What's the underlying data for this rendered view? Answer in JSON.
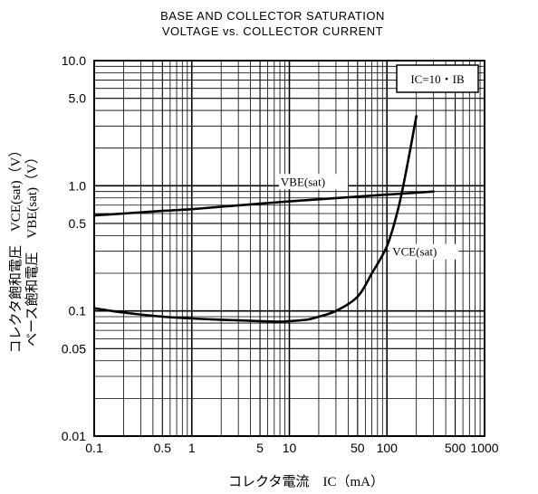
{
  "chart_data": {
    "type": "line",
    "title_lines": [
      "BASE AND COLLECTOR SATURATION",
      "VOLTAGE vs. COLLECTOR CURRENT"
    ],
    "xlabel": "コレクタ電流　I<sub>C</sub>（mA）",
    "xlabel_text": "コレクタ電流　IC（mA）",
    "ylabel_lines": [
      "コレクタ飽和電圧　V<sub>CE(sat)</sub>（V）",
      "ベース飽和電圧　V<sub>BE(sat)</sub>（V）"
    ],
    "ylabel_text_lines": [
      "コレクタ飽和電圧　VCE(sat)（V）",
      "ベース飽和電圧　VBE(sat)（V）"
    ],
    "x_scale": "log",
    "y_scale": "log",
    "xlim": [
      0.1,
      1000
    ],
    "ylim": [
      0.01,
      10
    ],
    "grid": true,
    "x_tick_labels": [
      {
        "value": 0.1,
        "label": "0.1"
      },
      {
        "value": 0.5,
        "label": "0.5"
      },
      {
        "value": 1,
        "label": "1"
      },
      {
        "value": 5,
        "label": "5"
      },
      {
        "value": 10,
        "label": "10"
      },
      {
        "value": 50,
        "label": "50"
      },
      {
        "value": 100,
        "label": "100"
      },
      {
        "value": 500,
        "label": "500"
      },
      {
        "value": 1000,
        "label": "1000"
      }
    ],
    "y_tick_labels": [
      {
        "value": 10,
        "label": "10.0"
      },
      {
        "value": 5,
        "label": "5.0"
      },
      {
        "value": 1,
        "label": "1.0"
      },
      {
        "value": 0.5,
        "label": "0.5"
      },
      {
        "value": 0.1,
        "label": "0.1"
      },
      {
        "value": 0.05,
        "label": "0.05"
      },
      {
        "value": 0.01,
        "label": "0.01"
      }
    ],
    "annotation": "I<sub>C</sub>=10・I<sub>B</sub>",
    "annotation_text": "IC=10・IB",
    "series": [
      {
        "name": "V<sub>BE(sat)</sub>",
        "name_text": "VBE(sat)",
        "x": [
          0.1,
          0.2,
          0.5,
          1,
          2,
          5,
          10,
          20,
          50,
          100,
          200,
          300
        ],
        "y": [
          0.58,
          0.6,
          0.63,
          0.65,
          0.68,
          0.72,
          0.75,
          0.78,
          0.82,
          0.85,
          0.88,
          0.9
        ]
      },
      {
        "name": "V<sub>CE(sat)</sub>",
        "name_text": "VCE(sat)",
        "x": [
          0.1,
          0.2,
          0.5,
          1,
          2,
          5,
          8,
          10,
          15,
          20,
          30,
          50,
          70,
          100,
          130,
          160,
          200
        ],
        "y": [
          0.105,
          0.097,
          0.09,
          0.087,
          0.085,
          0.083,
          0.082,
          0.083,
          0.085,
          0.09,
          0.1,
          0.13,
          0.2,
          0.33,
          0.65,
          1.4,
          3.6
        ]
      }
    ]
  }
}
